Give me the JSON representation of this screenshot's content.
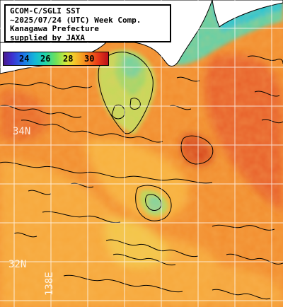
{
  "title": {
    "lines": [
      "GCOM-C/SGLI SST",
      "~2025/07/24 (UTC) Week Comp.",
      "Kanagawa Prefecture",
      "supplied by JAXA"
    ]
  },
  "colorbar": {
    "ticks": [
      "24",
      "26",
      "28",
      "30"
    ],
    "colors": [
      "#4a1a8c",
      "#3c2fd0",
      "#1f6fe8",
      "#14b8d8",
      "#22d6a8",
      "#6ee05a",
      "#d6ea3a",
      "#f5c62a",
      "#f58a1f",
      "#ea3a18",
      "#b8101a"
    ]
  },
  "grid": {
    "lat_labels": [
      "34N",
      "32N"
    ],
    "lon_labels": [
      "138E"
    ]
  },
  "colors": {
    "land": "#ffffff",
    "sea_warm": "#f08a2c",
    "sea_mid": "#f6a53a",
    "sea_cool": "#b8e05a",
    "sea_cold": "#3fd0b0",
    "sea_hot": "#e25a24",
    "contour": "#000000",
    "gridline": "#ffffff"
  }
}
